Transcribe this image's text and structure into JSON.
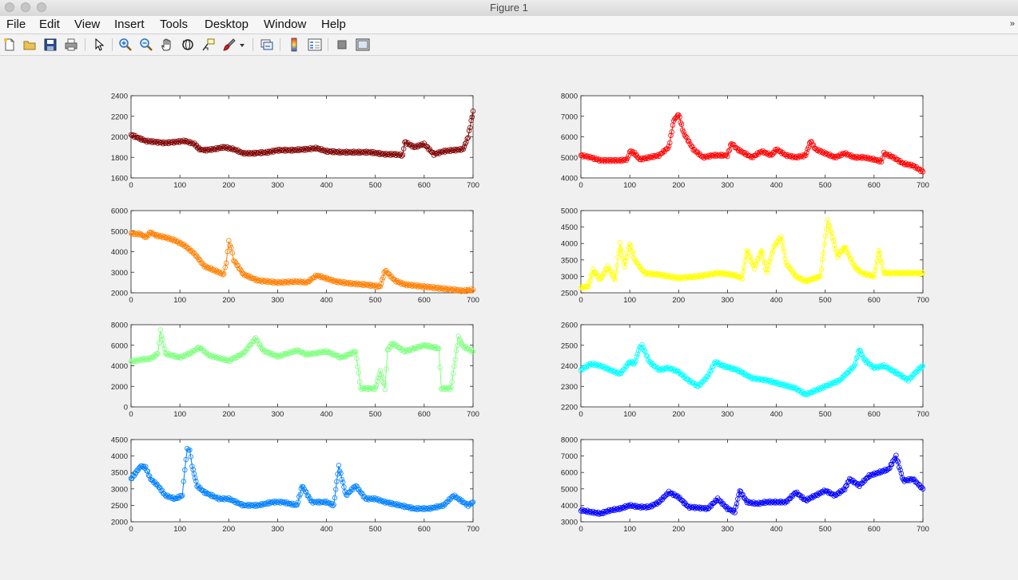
{
  "window": {
    "title": "Figure 1"
  },
  "menu": {
    "items": [
      "File",
      "Edit",
      "View",
      "Insert",
      "Tools",
      "Desktop",
      "Window",
      "Help"
    ],
    "overflow": "»"
  },
  "toolbar": {
    "icons": [
      "new-figure-icon",
      "open-file-icon",
      "save-icon",
      "print-icon",
      "pointer-icon",
      "zoom-in-icon",
      "zoom-out-icon",
      "pan-hand-icon",
      "rotate-3d-icon",
      "data-cursor-icon",
      "brush-icon",
      "brush-dropdown-icon",
      "link-plot-icon",
      "colorbar-icon",
      "legend-icon",
      "hide-plot-tools-icon",
      "show-plot-tools-icon"
    ]
  },
  "chart_data": [
    {
      "type": "line",
      "color": "#800000",
      "xlim": [
        0,
        700
      ],
      "ylim": [
        1600,
        2400
      ],
      "xticks": [
        0,
        100,
        200,
        300,
        400,
        500,
        600,
        700
      ],
      "yticks": [
        1600,
        1800,
        2000,
        2200,
        2400
      ],
      "series": [
        {
          "x": [
            0,
            15,
            30,
            50,
            70,
            90,
            110,
            130,
            140,
            150,
            170,
            190,
            210,
            230,
            250,
            280,
            300,
            330,
            360,
            380,
            400,
            430,
            460,
            490,
            520,
            540,
            556,
            560,
            580,
            600,
            620,
            640,
            660,
            680,
            690,
            700
          ],
          "y": [
            2020,
            1990,
            1960,
            1950,
            1940,
            1950,
            1960,
            1930,
            1880,
            1870,
            1880,
            1900,
            1880,
            1840,
            1840,
            1850,
            1870,
            1870,
            1880,
            1890,
            1860,
            1850,
            1850,
            1850,
            1830,
            1830,
            1820,
            1950,
            1900,
            1930,
            1830,
            1860,
            1870,
            1880,
            2000,
            2250
          ]
        }
      ]
    },
    {
      "type": "line",
      "color": "#ff0000",
      "xlim": [
        0,
        700
      ],
      "ylim": [
        4000,
        8000
      ],
      "xticks": [
        0,
        100,
        200,
        300,
        400,
        500,
        600,
        700
      ],
      "yticks": [
        4000,
        5000,
        6000,
        7000,
        8000
      ],
      "series": [
        {
          "x": [
            0,
            20,
            40,
            60,
            80,
            95,
            100,
            110,
            120,
            140,
            160,
            180,
            190,
            200,
            210,
            230,
            250,
            270,
            300,
            308,
            320,
            350,
            370,
            390,
            400,
            420,
            440,
            460,
            470,
            480,
            500,
            520,
            540,
            560,
            580,
            600,
            615,
            620,
            640,
            660,
            680,
            700
          ],
          "y": [
            5100,
            5000,
            4850,
            4850,
            4850,
            4900,
            5300,
            5200,
            4900,
            5000,
            5100,
            5500,
            6800,
            7100,
            6200,
            5400,
            5000,
            5100,
            5100,
            5700,
            5400,
            5000,
            5300,
            5100,
            5400,
            5100,
            5000,
            5100,
            5800,
            5400,
            5200,
            5000,
            5200,
            5000,
            5000,
            4900,
            4800,
            5200,
            5000,
            4700,
            4600,
            4300
          ]
        }
      ]
    },
    {
      "type": "line",
      "color": "#ff7f00",
      "xlim": [
        0,
        700
      ],
      "ylim": [
        2000,
        6000
      ],
      "xticks": [
        0,
        100,
        200,
        300,
        400,
        500,
        600,
        700
      ],
      "yticks": [
        2000,
        3000,
        4000,
        5000,
        6000
      ],
      "series": [
        {
          "x": [
            0,
            20,
            30,
            40,
            50,
            70,
            90,
            110,
            130,
            150,
            170,
            190,
            195,
            200,
            205,
            210,
            230,
            260,
            300,
            340,
            360,
            380,
            400,
            420,
            450,
            480,
            510,
            520,
            540,
            560,
            600,
            640,
            680,
            700
          ],
          "y": [
            4900,
            4850,
            4700,
            4950,
            4800,
            4700,
            4550,
            4300,
            3900,
            3300,
            3100,
            2900,
            3500,
            4500,
            4200,
            3600,
            2900,
            2600,
            2500,
            2550,
            2500,
            2850,
            2700,
            2550,
            2450,
            2400,
            2300,
            3100,
            2600,
            2400,
            2300,
            2200,
            2100,
            2150
          ]
        }
      ]
    },
    {
      "type": "line",
      "color": "#ffff00",
      "xlim": [
        0,
        700
      ],
      "ylim": [
        2500,
        5000
      ],
      "xticks": [
        0,
        100,
        200,
        300,
        400,
        500,
        600,
        700
      ],
      "yticks": [
        2500,
        3000,
        3500,
        4000,
        4500,
        5000
      ],
      "series": [
        {
          "x": [
            0,
            15,
            25,
            40,
            55,
            70,
            80,
            90,
            100,
            110,
            130,
            160,
            200,
            240,
            280,
            310,
            330,
            340,
            355,
            370,
            380,
            395,
            410,
            420,
            440,
            460,
            490,
            505,
            515,
            525,
            540,
            560,
            575,
            600,
            610,
            620,
            650,
            700
          ],
          "y": [
            2650,
            2700,
            3200,
            2900,
            3300,
            2900,
            4000,
            3300,
            4000,
            3500,
            3100,
            3050,
            2950,
            3000,
            3100,
            3050,
            2950,
            3800,
            3250,
            3800,
            3100,
            3900,
            4200,
            3400,
            3000,
            2850,
            3000,
            4700,
            4200,
            3600,
            3900,
            3300,
            3100,
            3000,
            3800,
            3100,
            3100,
            3100
          ]
        }
      ]
    },
    {
      "type": "line",
      "color": "#80ff80",
      "xlim": [
        0,
        700
      ],
      "ylim": [
        0,
        8000
      ],
      "xticks": [
        0,
        100,
        200,
        300,
        400,
        500,
        600,
        700
      ],
      "yticks": [
        0,
        2000,
        4000,
        6000,
        8000
      ],
      "series": [
        {
          "x": [
            0,
            20,
            40,
            55,
            60,
            70,
            100,
            120,
            140,
            160,
            200,
            230,
            255,
            270,
            300,
            340,
            360,
            400,
            430,
            460,
            470,
            472,
            500,
            510,
            520,
            525,
            535,
            560,
            580,
            600,
            630,
            635,
            655,
            670,
            680,
            700
          ],
          "y": [
            4400,
            4600,
            4700,
            5200,
            7400,
            5200,
            4800,
            5200,
            5800,
            5000,
            4500,
            5200,
            6700,
            5500,
            4900,
            5500,
            5100,
            5400,
            4800,
            5400,
            1800,
            1800,
            1800,
            3500,
            1800,
            5500,
            6200,
            5400,
            5700,
            6000,
            5700,
            1800,
            1800,
            6800,
            5900,
            5400
          ]
        }
      ]
    },
    {
      "type": "line",
      "color": "#00ffff",
      "xlim": [
        0,
        700
      ],
      "ylim": [
        2200,
        2600
      ],
      "xticks": [
        0,
        100,
        200,
        300,
        400,
        500,
        600,
        700
      ],
      "yticks": [
        2200,
        2300,
        2400,
        2500,
        2600
      ],
      "series": [
        {
          "x": [
            0,
            20,
            40,
            60,
            80,
            100,
            110,
            120,
            125,
            140,
            160,
            180,
            200,
            220,
            240,
            260,
            275,
            290,
            320,
            350,
            380,
            410,
            440,
            460,
            480,
            500,
            530,
            560,
            570,
            580,
            600,
            620,
            650,
            670,
            690,
            700
          ],
          "y": [
            2380,
            2410,
            2400,
            2380,
            2360,
            2420,
            2410,
            2490,
            2500,
            2420,
            2380,
            2390,
            2370,
            2330,
            2300,
            2350,
            2420,
            2400,
            2380,
            2340,
            2330,
            2310,
            2290,
            2260,
            2280,
            2300,
            2330,
            2400,
            2480,
            2430,
            2390,
            2400,
            2360,
            2330,
            2380,
            2400
          ]
        }
      ]
    },
    {
      "type": "line",
      "color": "#0080ff",
      "xlim": [
        0,
        700
      ],
      "ylim": [
        2000,
        4500
      ],
      "xticks": [
        0,
        100,
        200,
        300,
        400,
        500,
        600,
        700
      ],
      "yticks": [
        2000,
        2500,
        3000,
        3500,
        4000,
        4500
      ],
      "series": [
        {
          "x": [
            0,
            10,
            20,
            30,
            40,
            55,
            70,
            90,
            105,
            110,
            115,
            120,
            125,
            135,
            150,
            180,
            200,
            230,
            260,
            290,
            310,
            340,
            350,
            370,
            400,
            415,
            425,
            440,
            460,
            480,
            500,
            520,
            550,
            580,
            610,
            640,
            660,
            690,
            700
          ],
          "y": [
            3300,
            3500,
            3700,
            3650,
            3300,
            3100,
            2800,
            2700,
            2800,
            3600,
            4200,
            4200,
            3700,
            3100,
            2900,
            2700,
            2700,
            2500,
            2500,
            2600,
            2600,
            2500,
            3100,
            2600,
            2600,
            2500,
            3700,
            2800,
            3100,
            2700,
            2700,
            2600,
            2500,
            2400,
            2400,
            2500,
            2800,
            2500,
            2600
          ]
        }
      ]
    },
    {
      "type": "line",
      "color": "#0000ff",
      "xlim": [
        0,
        700
      ],
      "ylim": [
        3000,
        8000
      ],
      "xticks": [
        0,
        100,
        200,
        300,
        400,
        500,
        600,
        700
      ],
      "yticks": [
        3000,
        4000,
        5000,
        6000,
        7000,
        8000
      ],
      "series": [
        {
          "x": [
            0,
            20,
            40,
            60,
            80,
            100,
            120,
            140,
            160,
            180,
            200,
            220,
            260,
            280,
            300,
            315,
            325,
            340,
            360,
            380,
            420,
            440,
            460,
            480,
            500,
            520,
            540,
            550,
            570,
            590,
            610,
            630,
            645,
            660,
            680,
            700
          ],
          "y": [
            3700,
            3600,
            3500,
            3700,
            3800,
            4000,
            3900,
            3900,
            4200,
            4800,
            4500,
            3900,
            3800,
            4400,
            3800,
            3600,
            4900,
            4200,
            4100,
            4200,
            4200,
            4800,
            4300,
            4600,
            4900,
            4600,
            5000,
            5600,
            5200,
            5800,
            6000,
            6200,
            7000,
            5500,
            5600,
            5000
          ]
        }
      ]
    }
  ]
}
